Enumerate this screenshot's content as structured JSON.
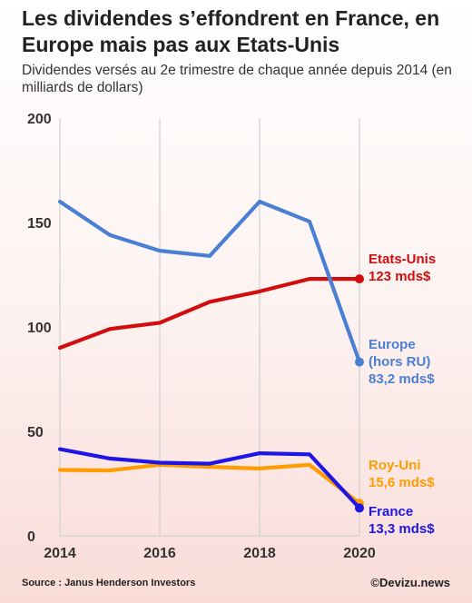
{
  "header": {
    "title": "Les dividendes s’effondrent en France, en Europe mais pas aux Etats-Unis",
    "subtitle": "Dividendes versés au 2e trimestre de chaque année depuis 2014 (en milliards de dollars)"
  },
  "footer": {
    "source": "Source : Janus Henderson Investors",
    "credit": "©Devizu.news"
  },
  "chart_data": {
    "type": "line",
    "title": "Les dividendes s’effondrent en France, en Europe mais pas aux Etats-Unis",
    "subtitle": "Dividendes versés au 2e trimestre de chaque année depuis 2014 (en milliards de dollars)",
    "xlabel": "",
    "ylabel": "",
    "xlim": [
      2014,
      2020
    ],
    "ylim": [
      0,
      200
    ],
    "x_ticks": [
      "2014",
      "2016",
      "2018",
      "2020"
    ],
    "y_ticks": [
      "0",
      "50",
      "100",
      "150",
      "200"
    ],
    "grid": "vertical",
    "x": [
      2014,
      2015,
      2016,
      2017,
      2018,
      2019,
      2020
    ],
    "series": [
      {
        "key": "usa",
        "color": "#d10d0d",
        "values": [
          90,
          99,
          102,
          112,
          117,
          123,
          123
        ],
        "label_lines": [
          "Etats-Unis",
          "123 mds$"
        ]
      },
      {
        "key": "europe",
        "color": "#4a7fd4",
        "values": [
          160,
          144,
          136.5,
          134,
          160,
          150.5,
          83.2
        ],
        "label_lines": [
          "Europe",
          "(hors RU)",
          "83,2 mds$"
        ]
      },
      {
        "key": "uk",
        "color": "#ff9c00",
        "values": [
          31.5,
          31.3,
          34,
          33,
          32.2,
          34,
          15.6
        ],
        "label_lines": [
          "Roy-Uni",
          "15,6 mds$"
        ]
      },
      {
        "key": "france",
        "color": "#1f16e6",
        "values": [
          41.5,
          37,
          35,
          34.5,
          39.5,
          39,
          13.3
        ],
        "label_lines": [
          "France",
          "13,3 mds$"
        ]
      }
    ]
  }
}
